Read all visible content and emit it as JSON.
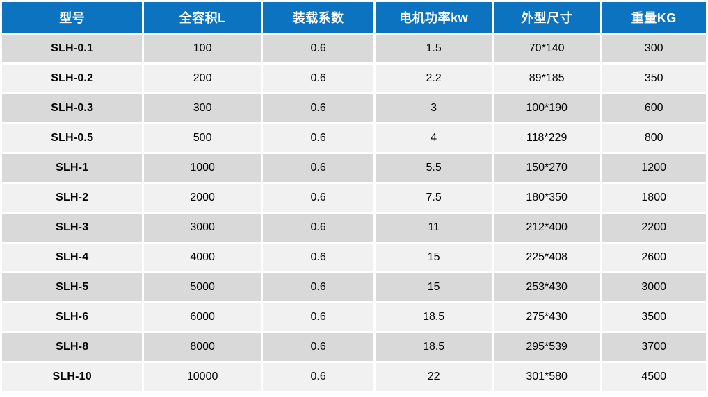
{
  "table": {
    "title": "SLH mixer specification table",
    "colors": {
      "header_bg": "#0b73c0",
      "header_fg": "#ffffff",
      "row_odd": "#d9d9d9",
      "row_even": "#f1f1f1",
      "body_fg": "#000000"
    },
    "columns": [
      "型号",
      "全容积L",
      "装载系数",
      "电机功率kw",
      "外型尺寸",
      "重量KG"
    ],
    "rows": [
      [
        "SLH-0.1",
        "100",
        "0.6",
        "1.5",
        "70*140",
        "300"
      ],
      [
        "SLH-0.2",
        "200",
        "0.6",
        "2.2",
        "89*185",
        "350"
      ],
      [
        "SLH-0.3",
        "300",
        "0.6",
        "3",
        "100*190",
        "600"
      ],
      [
        "SLH-0.5",
        "500",
        "0.6",
        "4",
        "118*229",
        "800"
      ],
      [
        "SLH-1",
        "1000",
        "0.6",
        "5.5",
        "150*270",
        "1200"
      ],
      [
        "SLH-2",
        "2000",
        "0.6",
        "7.5",
        "180*350",
        "1800"
      ],
      [
        "SLH-3",
        "3000",
        "0.6",
        "11",
        "212*400",
        "2200"
      ],
      [
        "SLH-4",
        "4000",
        "0.6",
        "15",
        "225*408",
        "2600"
      ],
      [
        "SLH-5",
        "5000",
        "0.6",
        "15",
        "253*430",
        "3000"
      ],
      [
        "SLH-6",
        "6000",
        "0.6",
        "18.5",
        "275*430",
        "3500"
      ],
      [
        "SLH-8",
        "8000",
        "0.6",
        "18.5",
        "295*539",
        "3700"
      ],
      [
        "SLH-10",
        "10000",
        "0.6",
        "22",
        "301*580",
        "4500"
      ]
    ]
  }
}
